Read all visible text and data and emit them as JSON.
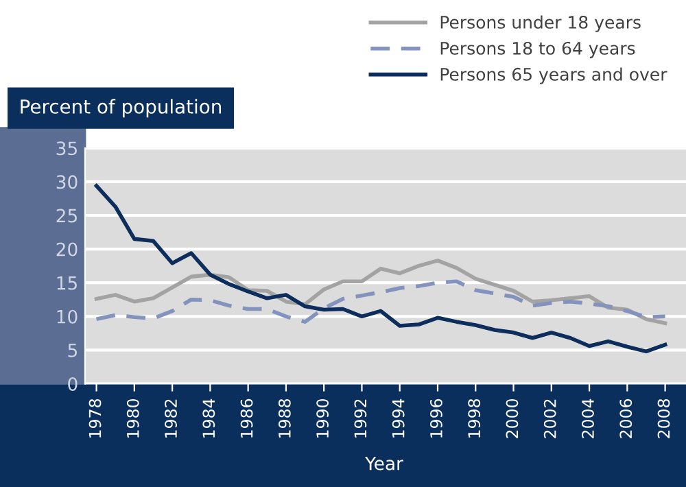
{
  "chart_data": {
    "type": "line",
    "ylabel": "Percent of population",
    "xlabel": "Year",
    "x": [
      1978,
      1979,
      1980,
      1981,
      1982,
      1983,
      1984,
      1985,
      1986,
      1987,
      1988,
      1989,
      1990,
      1991,
      1992,
      1993,
      1994,
      1995,
      1996,
      1997,
      1998,
      1999,
      2000,
      2001,
      2002,
      2003,
      2004,
      2005,
      2006,
      2007,
      2008
    ],
    "series": [
      {
        "name": "Persons under 18 years",
        "color": "#a3a3a3",
        "line_style": "solid",
        "values": [
          12.6,
          13.2,
          12.2,
          12.7,
          14.3,
          15.9,
          16.2,
          15.8,
          13.9,
          13.8,
          12.2,
          11.8,
          14.0,
          15.2,
          15.2,
          17.1,
          16.4,
          17.5,
          18.3,
          17.2,
          15.6,
          14.7,
          13.8,
          12.2,
          12.4,
          12.7,
          13.0,
          11.3,
          11.0,
          9.6,
          9.0
        ]
      },
      {
        "name": "Persons 18 to 64 years",
        "color": "#8393bd",
        "line_style": "dashed",
        "values": [
          9.6,
          10.2,
          9.9,
          9.7,
          10.8,
          12.5,
          12.4,
          11.6,
          11.1,
          11.1,
          10.0,
          9.2,
          11.2,
          12.6,
          13.1,
          13.6,
          14.2,
          14.5,
          15.0,
          15.2,
          13.9,
          13.4,
          12.9,
          11.6,
          12.0,
          12.2,
          11.9,
          11.5,
          10.8,
          9.9,
          10.0
        ]
      },
      {
        "name": "Persons 65 years and over",
        "color": "#0d2e5c",
        "line_style": "solid",
        "values": [
          29.4,
          26.3,
          21.5,
          21.2,
          17.9,
          19.4,
          16.2,
          14.8,
          13.7,
          12.7,
          13.2,
          11.5,
          11.0,
          11.1,
          10.0,
          10.8,
          8.6,
          8.8,
          9.8,
          9.2,
          8.7,
          8.0,
          7.6,
          6.8,
          7.6,
          6.8,
          5.6,
          6.3,
          5.5,
          4.8,
          5.8
        ]
      }
    ],
    "xlim": [
      1977.4,
      2009.1
    ],
    "ylim": [
      0,
      35
    ],
    "xticks": [
      1978,
      1980,
      1982,
      1984,
      1986,
      1988,
      1990,
      1992,
      1994,
      1996,
      1998,
      2000,
      2002,
      2004,
      2006,
      2008
    ],
    "yticks": [
      0,
      5,
      10,
      15,
      20,
      25,
      30,
      35
    ],
    "grid": "y",
    "legend": "top right",
    "marker": "none"
  }
}
